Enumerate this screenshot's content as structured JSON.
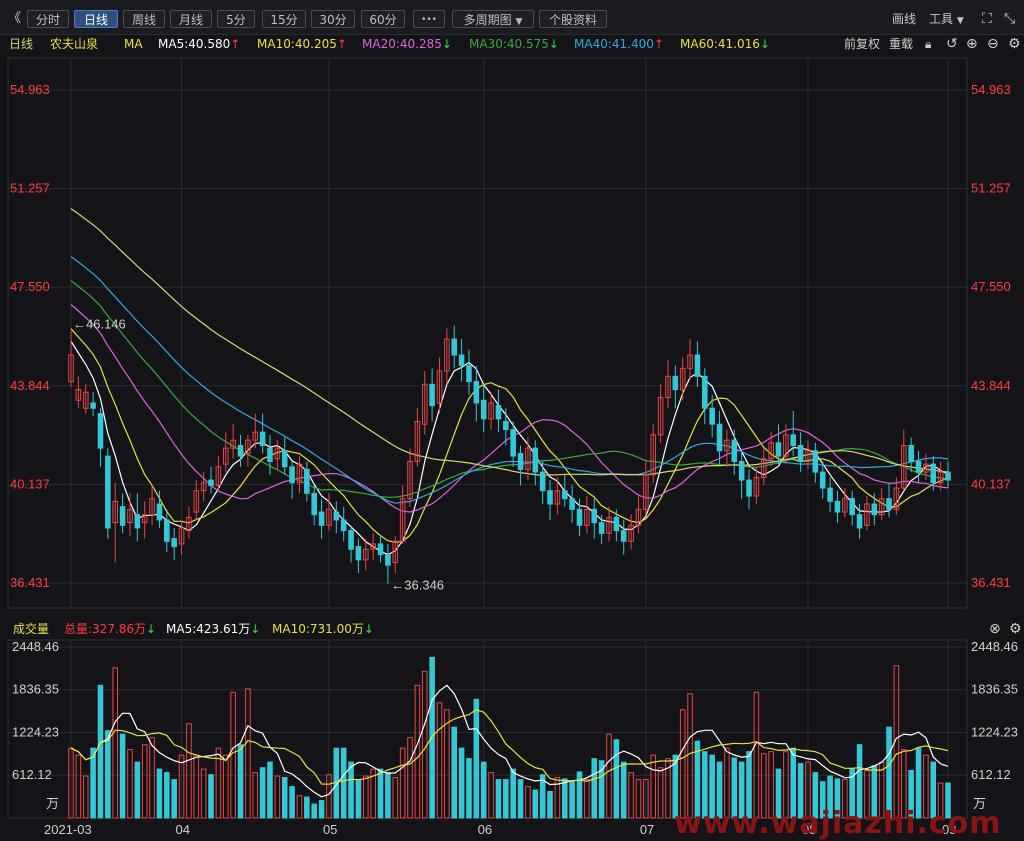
{
  "toolbar": {
    "collapse": "《",
    "periods": [
      "分时",
      "日线",
      "周线",
      "月线",
      "5分",
      "15分",
      "30分",
      "60分"
    ],
    "more": "•••",
    "multi_period": "多周期图",
    "stock_info": "个股资料",
    "draw": "画线",
    "tools": "工具"
  },
  "ma_bar": {
    "period": "日线",
    "stock_name": "农夫山泉",
    "ma_label": "MA",
    "ma5": "MA5:40.580",
    "ma10": "MA10:40.205",
    "ma20": "MA20:40.285",
    "ma30": "MA30:40.575",
    "ma40": "MA40:41.400",
    "ma60": "MA60:41.016",
    "adjust": "前复权",
    "reload": "重载"
  },
  "vol_bar": {
    "label": "成交量",
    "total": "总量:327.86万",
    "ma5": "MA5:423.61万",
    "ma10": "MA10:731.00万"
  },
  "colors": {
    "up": "#e84545",
    "down": "#35c7d5",
    "ma5": "#ffffff",
    "ma10": "#e6e23c",
    "ma20": "#e060e0",
    "ma30": "#3aa83a",
    "ma40": "#2fa8e0",
    "ma60": "#d8d870",
    "axis": "#ff3b3b",
    "grid": "#2a2b30"
  },
  "annotations": {
    "high": "←46.146",
    "low": "←36.346"
  },
  "watermark": "www.wajiazhi.com",
  "chart_data": [
    {
      "type": "candlestick",
      "title": "日线 农夫山泉",
      "y_ticks": [
        36.431,
        40.137,
        43.844,
        47.55,
        51.257,
        54.963
      ],
      "y_tick_labels": [
        "36.431",
        "40.137",
        "43.844",
        "47.550",
        "51.257",
        "54.963"
      ],
      "ylim": [
        35.5,
        56.8
      ],
      "x_ticks": [
        "2021-03",
        "04",
        "05",
        "06",
        "07",
        "08",
        "09"
      ],
      "x_tick_index": [
        0,
        15,
        35,
        56,
        78,
        100,
        119
      ],
      "high_marker": 46.146,
      "low_marker": 36.346,
      "series": [
        {
          "name": "MA5",
          "value": 40.58
        },
        {
          "name": "MA10",
          "value": 40.205
        },
        {
          "name": "MA20",
          "value": 40.285
        },
        {
          "name": "MA30",
          "value": 40.575
        },
        {
          "name": "MA40",
          "value": 41.4
        },
        {
          "name": "MA60",
          "value": 41.016
        }
      ],
      "ohlc": [
        [
          44.0,
          45.0,
          45.9,
          43.8
        ],
        [
          43.3,
          43.7,
          44.2,
          43.0
        ],
        [
          43.0,
          43.6,
          43.9,
          42.8
        ],
        [
          43.2,
          43.0,
          43.6,
          42.7
        ],
        [
          42.8,
          41.5,
          43.0,
          40.8
        ],
        [
          41.2,
          38.5,
          41.5,
          38.1
        ],
        [
          38.7,
          39.5,
          40.2,
          37.2
        ],
        [
          39.3,
          38.6,
          39.8,
          38.3
        ],
        [
          38.7,
          39.2,
          39.8,
          38.2
        ],
        [
          39.0,
          38.5,
          39.8,
          38.0
        ],
        [
          38.7,
          39.0,
          39.5,
          38.1
        ],
        [
          39.0,
          39.6,
          40.1,
          38.6
        ],
        [
          39.4,
          38.8,
          39.9,
          38.5
        ],
        [
          38.8,
          38.0,
          39.2,
          37.6
        ],
        [
          38.1,
          37.8,
          38.5,
          37.3
        ],
        [
          37.9,
          38.5,
          38.8,
          37.5
        ],
        [
          38.4,
          38.9,
          39.3,
          38.1
        ],
        [
          39.1,
          39.9,
          40.3,
          38.8
        ],
        [
          39.9,
          40.2,
          40.6,
          39.5
        ],
        [
          40.3,
          40.1,
          40.8,
          39.8
        ],
        [
          40.1,
          40.8,
          41.2,
          39.9
        ],
        [
          40.9,
          41.5,
          42.1,
          40.6
        ],
        [
          41.5,
          41.8,
          42.4,
          41.1
        ],
        [
          41.6,
          41.2,
          42.0,
          40.8
        ],
        [
          41.3,
          41.8,
          42.0,
          40.8
        ],
        [
          41.8,
          42.1,
          42.8,
          41.5
        ],
        [
          42.1,
          41.6,
          42.8,
          41.3
        ],
        [
          41.5,
          41.0,
          42.0,
          40.5
        ],
        [
          41.1,
          41.5,
          41.8,
          40.7
        ],
        [
          41.4,
          40.8,
          41.9,
          40.5
        ],
        [
          40.8,
          40.2,
          41.0,
          39.6
        ],
        [
          40.2,
          40.9,
          41.2,
          39.8
        ],
        [
          40.7,
          39.8,
          41.0,
          39.5
        ],
        [
          39.8,
          39.0,
          40.1,
          38.6
        ],
        [
          39.1,
          38.6,
          39.6,
          38.1
        ],
        [
          38.6,
          39.2,
          39.8,
          38.4
        ],
        [
          39.1,
          38.8,
          39.5,
          38.3
        ],
        [
          38.8,
          38.4,
          39.3,
          38.0
        ],
        [
          38.4,
          37.7,
          38.6,
          37.2
        ],
        [
          37.8,
          37.3,
          38.1,
          36.8
        ],
        [
          37.3,
          37.7,
          38.1,
          36.9
        ],
        [
          37.7,
          37.9,
          38.3,
          37.3
        ],
        [
          37.9,
          37.5,
          38.2,
          37.2
        ],
        [
          37.5,
          37.1,
          37.9,
          36.4
        ],
        [
          37.2,
          38.0,
          38.2,
          36.8
        ],
        [
          38.0,
          39.6,
          40.1,
          37.9
        ],
        [
          39.6,
          41.0,
          41.5,
          39.3
        ],
        [
          41.0,
          42.5,
          43.0,
          40.8
        ],
        [
          42.4,
          43.9,
          44.4,
          42.0
        ],
        [
          43.9,
          43.1,
          44.5,
          42.5
        ],
        [
          43.2,
          44.4,
          44.9,
          42.8
        ],
        [
          44.4,
          45.6,
          46.0,
          43.9
        ],
        [
          45.6,
          45.0,
          46.1,
          44.5
        ],
        [
          45.0,
          44.6,
          45.6,
          44.0
        ],
        [
          44.6,
          44.0,
          45.2,
          43.5
        ],
        [
          44.0,
          43.2,
          44.6,
          42.5
        ],
        [
          43.3,
          42.6,
          43.9,
          42.1
        ],
        [
          42.6,
          43.2,
          43.6,
          42.2
        ],
        [
          43.1,
          42.6,
          43.7,
          42.1
        ],
        [
          42.5,
          42.2,
          43.0,
          41.6
        ],
        [
          42.2,
          41.2,
          42.5,
          40.8
        ],
        [
          41.3,
          40.7,
          41.6,
          40.1
        ],
        [
          40.7,
          41.5,
          41.9,
          40.3
        ],
        [
          41.5,
          40.6,
          41.8,
          40.1
        ],
        [
          40.6,
          39.9,
          41.0,
          39.4
        ],
        [
          39.9,
          39.4,
          40.3,
          38.8
        ],
        [
          39.4,
          39.9,
          40.4,
          39.0
        ],
        [
          39.9,
          39.6,
          40.5,
          39.3
        ],
        [
          39.6,
          39.2,
          40.1,
          38.7
        ],
        [
          39.2,
          38.6,
          39.6,
          38.2
        ],
        [
          38.6,
          39.2,
          39.7,
          38.3
        ],
        [
          39.2,
          38.7,
          39.6,
          38.1
        ],
        [
          38.7,
          38.3,
          39.0,
          37.9
        ],
        [
          38.3,
          38.9,
          39.3,
          38.0
        ],
        [
          38.9,
          38.4,
          39.2,
          38.0
        ],
        [
          38.4,
          38.0,
          38.8,
          37.5
        ],
        [
          38.0,
          38.6,
          39.0,
          37.7
        ],
        [
          38.6,
          39.2,
          39.7,
          38.3
        ],
        [
          39.2,
          40.5,
          41.0,
          39.0
        ],
        [
          40.5,
          42.0,
          42.4,
          40.2
        ],
        [
          42.0,
          43.4,
          43.9,
          41.7
        ],
        [
          43.4,
          44.2,
          44.8,
          43.0
        ],
        [
          44.2,
          43.7,
          44.6,
          43.0
        ],
        [
          43.7,
          44.5,
          44.9,
          43.3
        ],
        [
          44.5,
          45.0,
          45.6,
          44.1
        ],
        [
          45.0,
          44.2,
          45.5,
          43.8
        ],
        [
          44.2,
          43.0,
          44.5,
          42.4
        ],
        [
          43.0,
          42.4,
          43.5,
          41.9
        ],
        [
          42.4,
          41.4,
          42.9,
          40.9
        ],
        [
          41.4,
          41.8,
          42.2,
          40.8
        ],
        [
          41.8,
          41.0,
          42.2,
          40.5
        ],
        [
          41.0,
          40.3,
          41.4,
          39.6
        ],
        [
          40.3,
          39.7,
          40.7,
          39.2
        ],
        [
          39.7,
          40.4,
          40.8,
          39.4
        ],
        [
          40.4,
          41.1,
          41.5,
          40.1
        ],
        [
          41.1,
          41.7,
          42.1,
          40.8
        ],
        [
          41.7,
          41.2,
          42.4,
          40.9
        ],
        [
          41.2,
          42.0,
          42.4,
          40.9
        ],
        [
          42.0,
          41.6,
          42.9,
          41.2
        ],
        [
          41.6,
          41.0,
          42.1,
          40.6
        ],
        [
          41.0,
          41.4,
          41.8,
          40.7
        ],
        [
          41.4,
          40.6,
          41.7,
          40.2
        ],
        [
          40.6,
          40.0,
          41.0,
          39.6
        ],
        [
          40.0,
          39.5,
          40.4,
          39.1
        ],
        [
          39.5,
          39.1,
          39.9,
          38.7
        ],
        [
          39.1,
          39.6,
          40.0,
          38.9
        ],
        [
          39.6,
          39.0,
          39.9,
          38.6
        ],
        [
          39.0,
          38.5,
          39.4,
          38.1
        ],
        [
          38.6,
          39.4,
          39.7,
          38.4
        ],
        [
          39.4,
          39.0,
          39.8,
          38.6
        ],
        [
          39.0,
          39.6,
          40.0,
          38.8
        ],
        [
          39.6,
          39.2,
          40.2,
          38.9
        ],
        [
          39.2,
          40.0,
          40.4,
          39.0
        ],
        [
          40.0,
          41.6,
          42.2,
          39.9
        ],
        [
          41.6,
          41.0,
          41.9,
          40.6
        ],
        [
          41.0,
          40.6,
          41.4,
          40.2
        ],
        [
          40.6,
          40.9,
          41.3,
          40.3
        ],
        [
          40.9,
          40.2,
          41.2,
          39.9
        ],
        [
          40.2,
          40.6,
          41.0,
          39.9
        ],
        [
          40.6,
          40.3,
          41.0,
          40.0
        ]
      ]
    },
    {
      "type": "bar",
      "title": "成交量",
      "y_ticks": [
        612.12,
        1224.23,
        1836.35,
        2448.46
      ],
      "y_tick_labels": [
        "612.12",
        "1224.23",
        "1836.35",
        "2448.46"
      ],
      "y_unit": "万",
      "ylim": [
        0,
        2448.46
      ],
      "series": [
        {
          "name": "MA5",
          "value": 423.61
        },
        {
          "name": "MA10",
          "value": 731.0
        }
      ],
      "values": [
        1000,
        900,
        600,
        1000,
        1900,
        1250,
        2150,
        1200,
        980,
        800,
        1050,
        1150,
        700,
        650,
        550,
        900,
        1350,
        900,
        700,
        620,
        1000,
        900,
        1800,
        1050,
        1850,
        650,
        720,
        800,
        600,
        580,
        450,
        320,
        300,
        200,
        250,
        620,
        1000,
        1000,
        800,
        550,
        600,
        700,
        700,
        650,
        580,
        1000,
        1150,
        1900,
        2100,
        2300,
        1650,
        1550,
        1300,
        1000,
        850,
        1700,
        800,
        650,
        550,
        550,
        700,
        550,
        450,
        400,
        620,
        380,
        580,
        560,
        530,
        660,
        550,
        850,
        820,
        1200,
        1120,
        800,
        650,
        550,
        550,
        900,
        720,
        850,
        900,
        1550,
        1780,
        1100,
        950,
        900,
        800,
        1000,
        860,
        800,
        950,
        1800,
        920,
        950,
        700,
        950,
        1000,
        780,
        800,
        650,
        520,
        600,
        560,
        550,
        700,
        1050,
        680,
        750,
        800,
        1300,
        2180,
        980,
        680,
        1000,
        900,
        800,
        500,
        500
      ]
    }
  ]
}
